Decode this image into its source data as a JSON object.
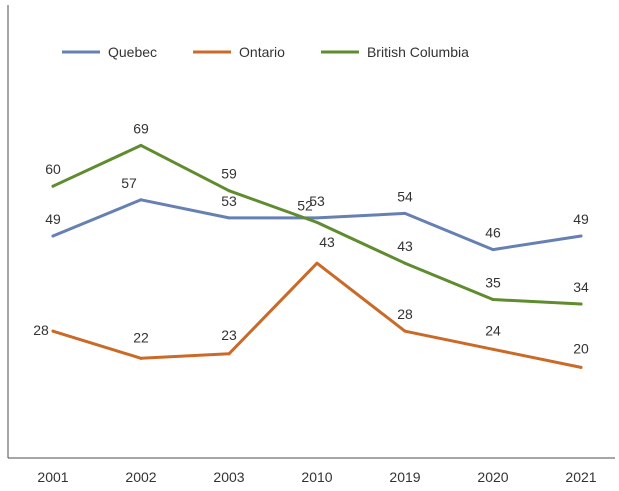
{
  "chart_data": {
    "type": "line",
    "categories": [
      "2001",
      "2002",
      "2003",
      "2010",
      "2019",
      "2020",
      "2021"
    ],
    "series": [
      {
        "name": "Quebec",
        "color": "#6680b3",
        "values": [
          49,
          57,
          53,
          53,
          54,
          46,
          49
        ]
      },
      {
        "name": "Ontario",
        "color": "#c96a28",
        "values": [
          28,
          22,
          23,
          43,
          28,
          24,
          20
        ]
      },
      {
        "name": "British Columbia",
        "color": "#5e8c2e",
        "values": [
          60,
          69,
          59,
          52,
          43,
          35,
          34
        ]
      }
    ],
    "title": "",
    "xlabel": "",
    "ylabel": "",
    "ylim": [
      0,
      100
    ],
    "grid": false,
    "legend": "top-left"
  }
}
